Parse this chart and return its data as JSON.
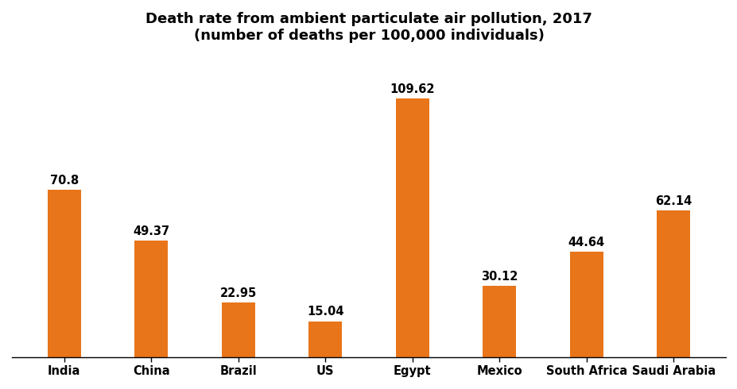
{
  "title": "Death rate from ambient particulate air pollution, 2017\n(number of deaths per 100,000 individuals)",
  "categories": [
    "India",
    "China",
    "Brazil",
    "US",
    "Egypt",
    "Mexico",
    "South Africa",
    "Saudi Arabia"
  ],
  "values": [
    70.8,
    49.37,
    22.95,
    15.04,
    109.62,
    30.12,
    44.64,
    62.14
  ],
  "bar_color": "#E8751A",
  "background_color": "#FFFFFF",
  "title_fontsize": 13,
  "label_fontsize": 10.5,
  "tick_fontsize": 10.5,
  "ylim": [
    0,
    130
  ],
  "bar_width": 0.38,
  "figsize": [
    9.28,
    4.9
  ],
  "dpi": 100
}
